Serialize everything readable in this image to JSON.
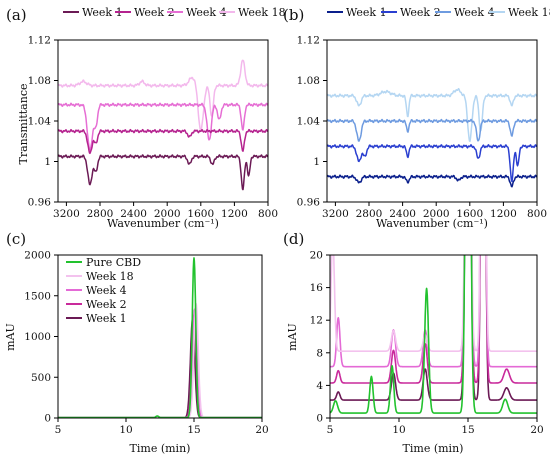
{
  "chart_data": [
    {
      "panel_label": "(a)",
      "type": "line",
      "xlabel": "Wavenumber (cm⁻¹)",
      "ylabel": "Transmittance",
      "xlim": [
        3300,
        800
      ],
      "ylim": [
        0.96,
        1.12
      ],
      "xticks": [
        3200,
        2800,
        2400,
        2000,
        1600,
        1200,
        800
      ],
      "yticks": [
        0.96,
        1,
        1.04,
        1.08,
        1.12
      ],
      "legend": "top",
      "series": [
        {
          "name": "Week 1",
          "color": "#6b1a55",
          "baseline": 1.005,
          "dips": [
            [
              2920,
              0.028,
              25
            ],
            [
              2850,
              0.015,
              20
            ],
            [
              1735,
              0.008,
              20
            ],
            [
              1460,
              0.008,
              20
            ],
            [
              1100,
              0.033,
              18
            ],
            [
              1030,
              0.02,
              15
            ]
          ]
        },
        {
          "name": "Week 2",
          "color": "#b5238f",
          "baseline": 1.03,
          "dips": [
            [
              2920,
              0.022,
              25
            ],
            [
              2850,
              0.012,
              20
            ],
            [
              1735,
              0.006,
              20
            ],
            [
              1100,
              0.02,
              18
            ]
          ]
        },
        {
          "name": "Week 4",
          "color": "#e66ed4",
          "baseline": 1.056,
          "dips": [
            [
              2920,
              0.045,
              30
            ],
            [
              2850,
              0.02,
              20
            ],
            [
              1500,
              0.035,
              25
            ],
            [
              1380,
              0.015,
              20
            ],
            [
              1100,
              0.025,
              18
            ]
          ]
        },
        {
          "name": "Week 18",
          "color": "#f3b8ec",
          "baseline": 1.075,
          "dips": [
            [
              1600,
              0.045,
              30
            ],
            [
              1470,
              0.03,
              20
            ]
          ],
          "peaks": [
            [
              3000,
              0.004,
              40
            ],
            [
              2300,
              0.004,
              30
            ],
            [
              1700,
              0.008,
              40
            ],
            [
              1100,
              0.025,
              25
            ]
          ]
        }
      ]
    },
    {
      "panel_label": "(b)",
      "type": "line",
      "xlabel": "Wavenumber (cm⁻¹)",
      "ylabel": "",
      "xlim": [
        3300,
        800
      ],
      "ylim": [
        0.96,
        1.12
      ],
      "xticks": [
        3200,
        2800,
        2400,
        2000,
        1600,
        1200,
        800
      ],
      "yticks": [
        0.96,
        1,
        1.04,
        1.08,
        1.12
      ],
      "legend": "top",
      "series": [
        {
          "name": "Week 1",
          "color": "#0a1f8c",
          "baseline": 0.985,
          "dips": [
            [
              2920,
              0.006,
              25
            ],
            [
              2340,
              0.005,
              20
            ],
            [
              1735,
              0.004,
              20
            ],
            [
              1100,
              0.01,
              18
            ]
          ]
        },
        {
          "name": "Week 2",
          "color": "#2a3fd0",
          "baseline": 1.015,
          "dips": [
            [
              2920,
              0.015,
              25
            ],
            [
              2850,
              0.01,
              20
            ],
            [
              2340,
              0.01,
              15
            ],
            [
              1500,
              0.012,
              20
            ],
            [
              1100,
              0.035,
              18
            ],
            [
              1030,
              0.02,
              15
            ]
          ]
        },
        {
          "name": "Week 4",
          "color": "#6e9be0",
          "baseline": 1.04,
          "dips": [
            [
              2920,
              0.02,
              25
            ],
            [
              2340,
              0.01,
              15
            ],
            [
              1500,
              0.02,
              20
            ],
            [
              1100,
              0.015,
              18
            ]
          ]
        },
        {
          "name": "Week 18",
          "color": "#b4d6f2",
          "baseline": 1.065,
          "dips": [
            [
              2920,
              0.01,
              25
            ],
            [
              2340,
              0.02,
              15
            ],
            [
              1600,
              0.045,
              25
            ],
            [
              1470,
              0.035,
              20
            ],
            [
              1100,
              0.01,
              18
            ]
          ],
          "peaks": [
            [
              2600,
              0.004,
              60
            ],
            [
              1750,
              0.006,
              40
            ]
          ]
        }
      ]
    },
    {
      "panel_label": "(c)",
      "type": "line",
      "xlabel": "Time (min)",
      "ylabel": "mAU",
      "xlim": [
        5,
        20
      ],
      "ylim": [
        0,
        2000
      ],
      "xticks": [
        5,
        10,
        15,
        20
      ],
      "yticks": [
        0,
        500,
        1000,
        1500,
        2000
      ],
      "legend": "top-left",
      "series": [
        {
          "name": "Pure CBD",
          "color": "#22c22e",
          "baseline": 5,
          "peaks": [
            [
              15.0,
              1960,
              0.13
            ],
            [
              12.3,
              20,
              0.1
            ]
          ]
        },
        {
          "name": "Week 18",
          "color": "#f3c2ee",
          "baseline": 5,
          "peaks": [
            [
              15.15,
              1400,
              0.16
            ]
          ]
        },
        {
          "name": "Week 4",
          "color": "#e46ad6",
          "baseline": 5,
          "peaks": [
            [
              15.05,
              1330,
              0.16
            ]
          ]
        },
        {
          "name": "Week 2",
          "color": "#c92a9b",
          "baseline": 5,
          "peaks": [
            [
              15.0,
              1260,
              0.16
            ]
          ]
        },
        {
          "name": "Week 1",
          "color": "#6b1a55",
          "baseline": 5,
          "peaks": [
            [
              14.9,
              1220,
              0.16
            ]
          ]
        }
      ]
    },
    {
      "panel_label": "(d)",
      "type": "line",
      "xlabel": "Time (min)",
      "ylabel": "mAU",
      "xlim": [
        5,
        20
      ],
      "ylim": [
        0,
        20
      ],
      "xticks": [
        5,
        10,
        15,
        20
      ],
      "yticks": [
        0,
        4,
        8,
        12,
        16,
        20
      ],
      "legend": "none",
      "series": [
        {
          "name": "Pure CBD",
          "color": "#22c22e",
          "baseline": 0.6,
          "peaks": [
            [
              5.4,
              1.5,
              0.15
            ],
            [
              8.0,
              4.5,
              0.12
            ],
            [
              9.5,
              5.8,
              0.12
            ],
            [
              12.0,
              15.3,
              0.14
            ],
            [
              15.0,
              80,
              0.15
            ],
            [
              17.7,
              1.7,
              0.18
            ]
          ]
        },
        {
          "name": "Week 18",
          "color": "#f3c2ee",
          "baseline": 8.2,
          "peaks": [
            [
              5.2,
              14,
              0.12
            ],
            [
              9.6,
              2.5,
              0.15
            ],
            [
              11.9,
              2.0,
              0.15
            ],
            [
              15.0,
              80,
              0.15
            ],
            [
              16.1,
              80,
              0.13
            ]
          ]
        },
        {
          "name": "Week 4",
          "color": "#e46ad6",
          "baseline": 6.3,
          "peaks": [
            [
              5.6,
              6,
              0.12
            ],
            [
              9.6,
              4.5,
              0.15
            ],
            [
              11.9,
              4.5,
              0.15
            ],
            [
              15.0,
              80,
              0.15
            ],
            [
              16.1,
              80,
              0.13
            ]
          ]
        },
        {
          "name": "Week 2",
          "color": "#c92a9b",
          "baseline": 4.3,
          "peaks": [
            [
              5.6,
              1.5,
              0.12
            ],
            [
              9.6,
              4.0,
              0.15
            ],
            [
              11.9,
              4.8,
              0.15
            ],
            [
              15.0,
              80,
              0.15
            ],
            [
              16.1,
              80,
              0.13
            ],
            [
              17.8,
              1.7,
              0.2
            ]
          ]
        },
        {
          "name": "Week 1",
          "color": "#6b1a55",
          "baseline": 2.2,
          "peaks": [
            [
              5.6,
              1.0,
              0.12
            ],
            [
              9.6,
              3.3,
              0.15
            ],
            [
              11.9,
              3.8,
              0.15
            ],
            [
              15.0,
              80,
              0.15
            ],
            [
              16.1,
              80,
              0.13
            ],
            [
              17.8,
              1.5,
              0.2
            ]
          ]
        }
      ]
    }
  ]
}
